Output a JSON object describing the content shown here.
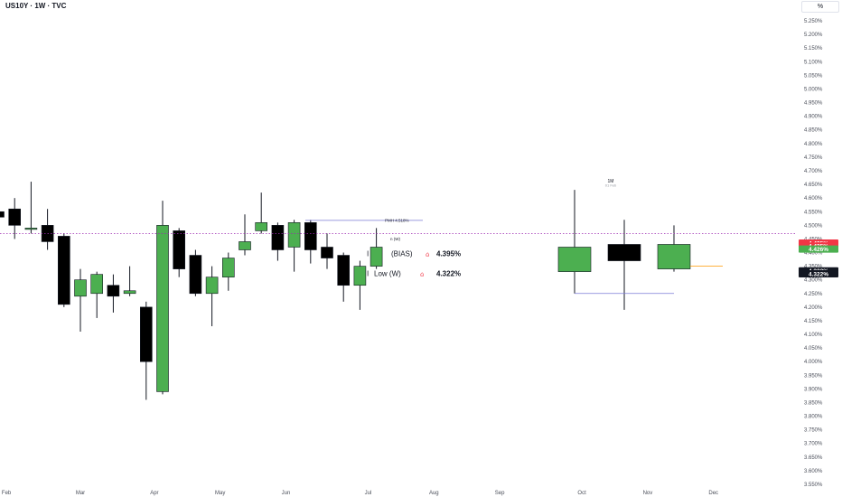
{
  "header": {
    "title": "US10Y · 1W · TVC",
    "scale_button": "%"
  },
  "colors": {
    "up": "#4caf50",
    "down": "#000000",
    "wick": "#131722",
    "dotted": "#9c27b0",
    "text": "#131722",
    "grid_text": "#4a4e59",
    "tag_red": "#f23645",
    "tag_green": "#4caf50",
    "tag_black": "#131722",
    "orange": "#ff9800",
    "level": "#7b7bd6"
  },
  "chart_data": {
    "type": "candlestick",
    "ylim": [
      3.55,
      5.27
    ],
    "price_axis_labels": [
      "5.250%",
      "5.200%",
      "5.150%",
      "5.100%",
      "5.050%",
      "5.000%",
      "4.950%",
      "4.900%",
      "4.850%",
      "4.800%",
      "4.750%",
      "4.700%",
      "4.650%",
      "4.600%",
      "4.550%",
      "4.500%",
      "4.450%",
      "4.400%",
      "4.350%",
      "4.300%",
      "4.250%",
      "4.200%",
      "4.150%",
      "4.100%",
      "4.050%",
      "4.000%",
      "3.950%",
      "3.900%",
      "3.850%",
      "3.800%",
      "3.750%",
      "3.700%",
      "3.650%",
      "3.600%",
      "3.550%"
    ],
    "time_axis_labels": [
      {
        "label": "Feb",
        "week": 0.5
      },
      {
        "label": "Mar",
        "week": 5
      },
      {
        "label": "Apr",
        "week": 9.5
      },
      {
        "label": "May",
        "week": 13.5
      },
      {
        "label": "Jun",
        "week": 17.5
      },
      {
        "label": "Jul",
        "week": 22.5
      },
      {
        "label": "Aug",
        "week": 26.5
      },
      {
        "label": "Sep",
        "week": 30.5
      },
      {
        "label": "Oct",
        "week": 35.5
      },
      {
        "label": "Nov",
        "week": 39.5
      },
      {
        "label": "Dec",
        "week": 43.5
      }
    ],
    "weekly_candles": [
      {
        "o": 4.55,
        "h": 4.58,
        "l": 4.5,
        "c": 4.53
      },
      {
        "o": 4.56,
        "h": 4.6,
        "l": 4.45,
        "c": 4.5
      },
      {
        "o": 4.49,
        "h": 4.66,
        "l": 4.47,
        "c": 4.49
      },
      {
        "o": 4.5,
        "h": 4.56,
        "l": 4.41,
        "c": 4.44
      },
      {
        "o": 4.46,
        "h": 4.47,
        "l": 4.2,
        "c": 4.21
      },
      {
        "o": 4.24,
        "h": 4.34,
        "l": 4.11,
        "c": 4.3
      },
      {
        "o": 4.25,
        "h": 4.33,
        "l": 4.16,
        "c": 4.32
      },
      {
        "o": 4.28,
        "h": 4.32,
        "l": 4.18,
        "c": 4.24
      },
      {
        "o": 4.25,
        "h": 4.35,
        "l": 4.24,
        "c": 4.26
      },
      {
        "o": 4.2,
        "h": 4.22,
        "l": 3.86,
        "c": 4.0
      },
      {
        "o": 3.89,
        "h": 4.59,
        "l": 3.88,
        "c": 4.5
      },
      {
        "o": 4.48,
        "h": 4.49,
        "l": 4.31,
        "c": 4.34
      },
      {
        "o": 4.39,
        "h": 4.41,
        "l": 4.24,
        "c": 4.25
      },
      {
        "o": 4.25,
        "h": 4.35,
        "l": 4.13,
        "c": 4.31
      },
      {
        "o": 4.31,
        "h": 4.4,
        "l": 4.26,
        "c": 4.38
      },
      {
        "o": 4.41,
        "h": 4.54,
        "l": 4.39,
        "c": 4.44
      },
      {
        "o": 4.48,
        "h": 4.62,
        "l": 4.47,
        "c": 4.51
      },
      {
        "o": 4.5,
        "h": 4.51,
        "l": 4.37,
        "c": 4.41
      },
      {
        "o": 4.42,
        "h": 4.52,
        "l": 4.33,
        "c": 4.51
      },
      {
        "o": 4.51,
        "h": 4.52,
        "l": 4.36,
        "c": 4.41
      },
      {
        "o": 4.42,
        "h": 4.47,
        "l": 4.34,
        "c": 4.38
      },
      {
        "o": 4.39,
        "h": 4.4,
        "l": 4.22,
        "c": 4.28
      },
      {
        "o": 4.28,
        "h": 4.37,
        "l": 4.19,
        "c": 4.35
      },
      {
        "o": 4.35,
        "h": 4.49,
        "l": 4.34,
        "c": 4.42
      }
    ],
    "monthly_candles": [
      {
        "o": 4.33,
        "h": 4.63,
        "l": 4.25,
        "c": 4.42
      },
      {
        "o": 4.43,
        "h": 4.52,
        "l": 4.19,
        "c": 4.37
      },
      {
        "o": 4.34,
        "h": 4.5,
        "l": 4.33,
        "c": 4.43
      }
    ],
    "annotations": {
      "pmh": "PMH 4.518%",
      "small_w": "n (W)",
      "bias_prefix": "I",
      "bias": "(BIAS)",
      "bias_value": "4.395%",
      "low_prefix": "I",
      "low": "Low (W)",
      "low_value": "4.322%",
      "tf": "1M",
      "tf_sub": "01 Feb"
    },
    "price_tags": [
      {
        "text": "4.435%",
        "color": "#f23645",
        "y": 4.435
      },
      {
        "text": "4.425%",
        "color": "#f23645",
        "y": 4.424
      },
      {
        "text": "4.426%",
        "color": "#4caf50",
        "y": 4.413
      },
      {
        "text": "4.322%",
        "color": "#131722",
        "y": 4.333
      },
      {
        "text": "4.322%",
        "color": "#131722",
        "y": 4.322
      }
    ],
    "levels": {
      "dotted_line": 4.47,
      "pmh": 4.518,
      "orange": 4.35,
      "monthly_low": 4.25
    }
  }
}
